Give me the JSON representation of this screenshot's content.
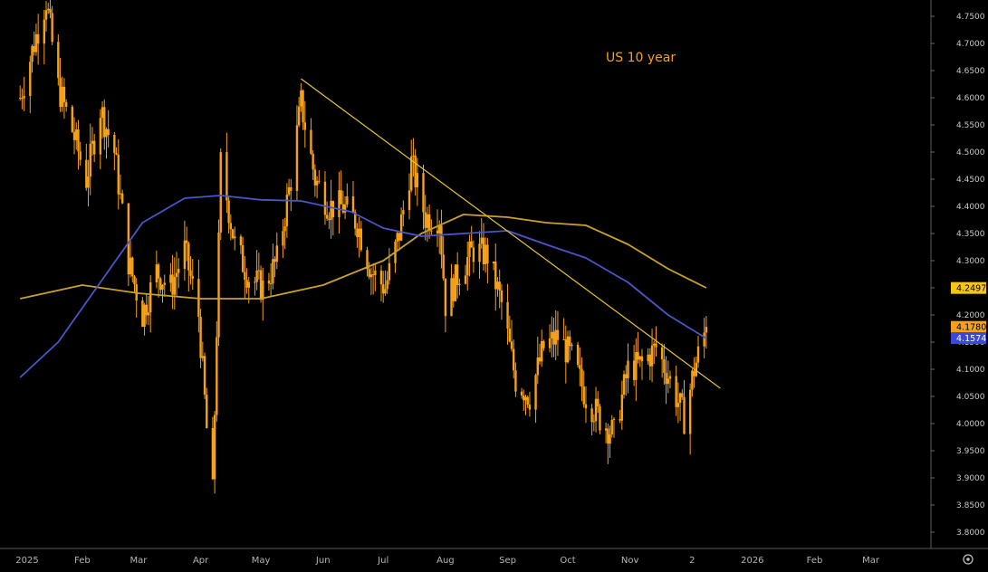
{
  "chart_data": {
    "type": "candlestick",
    "title": "US 10 year",
    "x_tick_labels": [
      "2025",
      "Feb",
      "Mar",
      "Apr",
      "May",
      "Jun",
      "Jul",
      "Aug",
      "Sep",
      "Oct",
      "Nov",
      "2",
      "2026",
      "Feb",
      "Mar"
    ],
    "y_tick_labels": [
      "4.7500",
      "4.7000",
      "4.6500",
      "4.6000",
      "4.5500",
      "4.5000",
      "4.4500",
      "4.4000",
      "4.3500",
      "4.3000",
      "4.2500",
      "4.2000",
      "4.1500",
      "4.1000",
      "4.0500",
      "4.0000",
      "3.9500",
      "3.9000",
      "3.8500",
      "3.8000"
    ],
    "ylim": [
      3.77,
      4.78
    ],
    "xlim": [
      "2024-12-31",
      "2026-03-31"
    ],
    "y_axis_side": "right",
    "grid": false,
    "colors": {
      "background": "#000000",
      "candles": "#f5a11a",
      "ma_blue": "#4a55c8",
      "ma_gold": "#c9a227",
      "trendline": "#e8c23a",
      "title": "#f5a11a"
    },
    "price_series": {
      "name": "",
      "points": [
        [
          "2025-01-01",
          4.6
        ],
        [
          "2025-01-08",
          4.7
        ],
        [
          "2025-01-14",
          4.78
        ],
        [
          "2025-01-20",
          4.62
        ],
        [
          "2025-01-27",
          4.54
        ],
        [
          "2025-02-03",
          4.45
        ],
        [
          "2025-02-10",
          4.58
        ],
        [
          "2025-02-17",
          4.5
        ],
        [
          "2025-02-24",
          4.3
        ],
        [
          "2025-03-03",
          4.2
        ],
        [
          "2025-03-10",
          4.28
        ],
        [
          "2025-03-17",
          4.25
        ],
        [
          "2025-03-24",
          4.32
        ],
        [
          "2025-03-31",
          4.2
        ],
        [
          "2025-04-04",
          3.99
        ],
        [
          "2025-04-07",
          3.87
        ],
        [
          "2025-04-11",
          4.48
        ],
        [
          "2025-04-18",
          4.33
        ],
        [
          "2025-04-25",
          4.27
        ],
        [
          "2025-05-02",
          4.25
        ],
        [
          "2025-05-09",
          4.3
        ],
        [
          "2025-05-16",
          4.45
        ],
        [
          "2025-05-21",
          4.59
        ],
        [
          "2025-05-28",
          4.45
        ],
        [
          "2025-06-04",
          4.4
        ],
        [
          "2025-06-11",
          4.4
        ],
        [
          "2025-06-18",
          4.37
        ],
        [
          "2025-06-25",
          4.28
        ],
        [
          "2025-07-02",
          4.25
        ],
        [
          "2025-07-09",
          4.35
        ],
        [
          "2025-07-15",
          4.48
        ],
        [
          "2025-07-22",
          4.38
        ],
        [
          "2025-07-29",
          4.38
        ],
        [
          "2025-08-01",
          4.22
        ],
        [
          "2025-08-08",
          4.28
        ],
        [
          "2025-08-15",
          4.32
        ],
        [
          "2025-08-22",
          4.31
        ],
        [
          "2025-08-29",
          4.22
        ],
        [
          "2025-09-05",
          4.08
        ],
        [
          "2025-09-12",
          4.05
        ],
        [
          "2025-09-19",
          4.14
        ],
        [
          "2025-09-26",
          4.16
        ],
        [
          "2025-10-03",
          4.12
        ],
        [
          "2025-10-10",
          4.05
        ],
        [
          "2025-10-17",
          4.01
        ],
        [
          "2025-10-24",
          3.98
        ],
        [
          "2025-10-31",
          4.1
        ],
        [
          "2025-11-07",
          4.11
        ],
        [
          "2025-11-14",
          4.14
        ],
        [
          "2025-11-21",
          4.08
        ],
        [
          "2025-11-28",
          4.01
        ],
        [
          "2025-12-03",
          4.1
        ],
        [
          "2025-12-09",
          4.178
        ]
      ]
    },
    "ma_blue": {
      "name": "",
      "last_value": "4.1574",
      "points": [
        [
          "2025-01-01",
          4.085
        ],
        [
          "2025-01-20",
          4.15
        ],
        [
          "2025-02-10",
          4.26
        ],
        [
          "2025-03-03",
          4.37
        ],
        [
          "2025-03-24",
          4.415
        ],
        [
          "2025-04-11",
          4.42
        ],
        [
          "2025-05-01",
          4.412
        ],
        [
          "2025-05-21",
          4.41
        ],
        [
          "2025-06-15",
          4.39
        ],
        [
          "2025-07-01",
          4.36
        ],
        [
          "2025-07-20",
          4.345
        ],
        [
          "2025-08-10",
          4.35
        ],
        [
          "2025-09-01",
          4.355
        ],
        [
          "2025-09-20",
          4.33
        ],
        [
          "2025-10-10",
          4.305
        ],
        [
          "2025-10-31",
          4.26
        ],
        [
          "2025-11-20",
          4.2
        ],
        [
          "2025-12-01",
          4.175
        ],
        [
          "2025-12-09",
          4.157
        ]
      ]
    },
    "ma_gold": {
      "name": "",
      "last_value": "4.2497",
      "points": [
        [
          "2025-01-01",
          4.23
        ],
        [
          "2025-02-01",
          4.255
        ],
        [
          "2025-03-01",
          4.24
        ],
        [
          "2025-04-01",
          4.23
        ],
        [
          "2025-05-01",
          4.23
        ],
        [
          "2025-06-01",
          4.255
        ],
        [
          "2025-07-01",
          4.3
        ],
        [
          "2025-07-20",
          4.35
        ],
        [
          "2025-08-10",
          4.385
        ],
        [
          "2025-09-01",
          4.38
        ],
        [
          "2025-09-20",
          4.37
        ],
        [
          "2025-10-10",
          4.365
        ],
        [
          "2025-10-31",
          4.33
        ],
        [
          "2025-11-20",
          4.285
        ],
        [
          "2025-12-09",
          4.25
        ]
      ]
    },
    "trendline": {
      "points": [
        [
          "2025-05-21",
          4.635
        ],
        [
          "2025-12-16",
          4.065
        ]
      ]
    },
    "price_badges": [
      {
        "label": "4.2497",
        "value": 4.2497,
        "color": "#f5c518",
        "text_color": "#000000"
      },
      {
        "label": "4.1780",
        "value": 4.178,
        "color": "#f5a11a",
        "text_color": "#000000"
      },
      {
        "label": "4.1574",
        "value": 4.1574,
        "color": "#3a48d8",
        "text_color": "#ffffff"
      }
    ],
    "annotations": [],
    "legend": "none"
  },
  "icons": {
    "settings": "gear-icon"
  }
}
